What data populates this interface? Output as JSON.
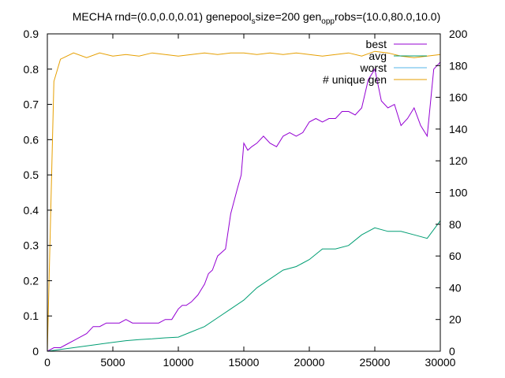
{
  "chart_data": {
    "type": "line",
    "title": "MECHA rnd=(0.0,0.0,0.01) genepool_size=200 gen_o_p_probs=(10.0,80.0,10.0)",
    "title_parts": [
      "MECHA rnd=(0.0,0.0,0.01) genepool",
      "s",
      "size=200 gen",
      "o",
      "p",
      "p",
      "robs=(10.0,80.0,10.0)"
    ],
    "xlim": [
      0,
      30000
    ],
    "ylim": [
      0,
      0.9
    ],
    "y2lim": [
      0,
      200
    ],
    "xticks": [
      "0",
      "5000",
      "10000",
      "15000",
      "20000",
      "25000",
      "30000"
    ],
    "yticks": [
      "0",
      "0.1",
      "0.2",
      "0.3",
      "0.4",
      "0.5",
      "0.6",
      "0.7",
      "0.8",
      "0.9"
    ],
    "y2ticks": [
      "0",
      "20",
      "40",
      "60",
      "80",
      "100",
      "120",
      "140",
      "160",
      "180",
      "200"
    ],
    "grid": false,
    "legend_position": "top-right",
    "colors": {
      "best": "#9400d3",
      "avg": "#009e73",
      "worst": "#56b4e9",
      "unique": "#e69f00"
    },
    "series": [
      {
        "name": "best",
        "axis": "left",
        "x": [
          0,
          500,
          1000,
          1500,
          2000,
          2500,
          3000,
          3500,
          4000,
          4500,
          5000,
          5500,
          6000,
          6500,
          7000,
          7500,
          8000,
          8500,
          9000,
          9500,
          10000,
          10300,
          10600,
          11000,
          11500,
          12000,
          12300,
          12600,
          13000,
          13300,
          13600,
          14000,
          14500,
          14800,
          15000,
          15300,
          15600,
          16000,
          16500,
          17000,
          17500,
          18000,
          18500,
          19000,
          19500,
          20000,
          20500,
          21000,
          21500,
          22000,
          22500,
          23000,
          23500,
          24000,
          24500,
          25000,
          25500,
          26000,
          26500,
          27000,
          27500,
          28000,
          28500,
          29000,
          29500,
          30000
        ],
        "values": [
          0.0,
          0.01,
          0.01,
          0.02,
          0.03,
          0.04,
          0.05,
          0.07,
          0.07,
          0.08,
          0.08,
          0.08,
          0.09,
          0.08,
          0.08,
          0.08,
          0.08,
          0.08,
          0.09,
          0.09,
          0.12,
          0.13,
          0.13,
          0.14,
          0.16,
          0.19,
          0.22,
          0.23,
          0.27,
          0.28,
          0.29,
          0.39,
          0.46,
          0.5,
          0.59,
          0.57,
          0.58,
          0.59,
          0.61,
          0.59,
          0.58,
          0.61,
          0.62,
          0.61,
          0.62,
          0.65,
          0.66,
          0.65,
          0.66,
          0.66,
          0.68,
          0.68,
          0.67,
          0.69,
          0.77,
          0.8,
          0.71,
          0.69,
          0.7,
          0.64,
          0.66,
          0.69,
          0.64,
          0.61,
          0.8,
          0.82
        ]
      },
      {
        "name": "avg",
        "axis": "left",
        "x": [
          0,
          1000,
          2000,
          3000,
          4000,
          5000,
          6000,
          7000,
          8000,
          9000,
          10000,
          11000,
          12000,
          13000,
          14000,
          15000,
          16000,
          17000,
          18000,
          19000,
          20000,
          21000,
          22000,
          23000,
          24000,
          25000,
          26000,
          27000,
          28000,
          29000,
          30000
        ],
        "values": [
          0.0,
          0.005,
          0.01,
          0.015,
          0.02,
          0.025,
          0.03,
          0.033,
          0.035,
          0.038,
          0.04,
          0.055,
          0.07,
          0.095,
          0.12,
          0.145,
          0.18,
          0.205,
          0.23,
          0.24,
          0.26,
          0.29,
          0.29,
          0.3,
          0.33,
          0.35,
          0.34,
          0.34,
          0.33,
          0.32,
          0.37
        ]
      },
      {
        "name": "worst",
        "axis": "left",
        "x": [
          0,
          30000
        ],
        "values": [
          0.0,
          0.0
        ]
      },
      {
        "name": "# unique gen",
        "axis": "right",
        "x": [
          0,
          500,
          1000,
          1500,
          2000,
          3000,
          4000,
          5000,
          6000,
          7000,
          8000,
          9000,
          10000,
          11000,
          12000,
          13000,
          14000,
          15000,
          16000,
          17000,
          18000,
          19000,
          20000,
          21000,
          22000,
          23000,
          24000,
          25000,
          26000,
          27000,
          28000,
          29000,
          30000
        ],
        "values": [
          0,
          170,
          184,
          186,
          188,
          185,
          188,
          186,
          187,
          186,
          188,
          187,
          186,
          187,
          188,
          187,
          188,
          188,
          187,
          188,
          187,
          188,
          187,
          186,
          187,
          188,
          186,
          189,
          188,
          186,
          185,
          186,
          187
        ]
      }
    ]
  }
}
